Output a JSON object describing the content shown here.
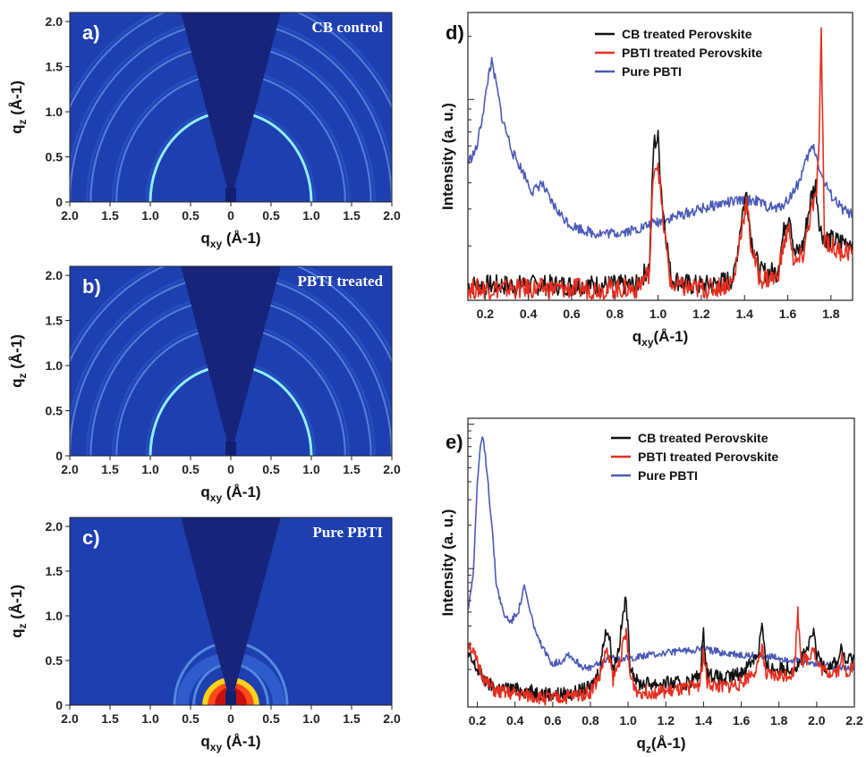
{
  "chart_data": [
    {
      "panel": "a)",
      "type": "heatmap",
      "title": "CB control",
      "xlabel": "qxy (Å-1)",
      "ylabel": "qz (Å-1)",
      "xlim": [
        2.0,
        -2.0
      ],
      "ylim": [
        0,
        2.1
      ],
      "x_ticks": [
        "2.0",
        "1.5",
        "1.0",
        "0.5",
        "0",
        "0.5",
        "1.0",
        "1.5",
        "2.0"
      ],
      "y_ticks": [
        "0",
        "0.5",
        "1.0",
        "1.5",
        "2.0"
      ],
      "rings_q": [
        1.0,
        1.42,
        1.74,
        2.0,
        2.26
      ],
      "bright_ring_q": 1.0
    },
    {
      "panel": "b)",
      "type": "heatmap",
      "title": "PBTI treated",
      "xlabel": "qxy (Å-1)",
      "ylabel": "qz (Å-1)",
      "xlim": [
        2.0,
        -2.0
      ],
      "ylim": [
        0,
        2.1
      ],
      "x_ticks": [
        "2.0",
        "1.5",
        "1.0",
        "0.5",
        "0",
        "0.5",
        "1.0",
        "1.5",
        "2.0"
      ],
      "y_ticks": [
        "0",
        "0.5",
        "1.0",
        "1.5",
        "2.0"
      ],
      "rings_q": [
        1.0,
        1.42,
        1.74,
        2.0,
        2.26
      ],
      "bright_ring_q": 1.0
    },
    {
      "panel": "c)",
      "type": "heatmap",
      "title": "Pure PBTI",
      "xlabel": "qxy (Å-1)",
      "ylabel": "qz (Å-1)",
      "xlim": [
        2.0,
        -2.0
      ],
      "ylim": [
        0,
        2.1
      ],
      "x_ticks": [
        "2.0",
        "1.5",
        "1.0",
        "0.5",
        "0",
        "0.5",
        "1.0",
        "1.5",
        "2.0"
      ],
      "y_ticks": [
        "0",
        "0.5",
        "1.0",
        "1.5",
        "2.0"
      ],
      "rings_q": [
        0.23,
        0.46,
        0.7
      ],
      "bright_ring_q": 0.23
    },
    {
      "panel": "d)",
      "type": "line",
      "xlabel": "qxy(Å-1)",
      "ylabel": "Intensity (a. u.)",
      "xlim": [
        0.12,
        1.9
      ],
      "x_ticks": [
        "0.2",
        "0.4",
        "0.6",
        "0.8",
        "1.0",
        "1.2",
        "1.4",
        "1.6",
        "1.8"
      ],
      "y_scale": "log",
      "legend_position": "top-right",
      "series": [
        {
          "name": "CB treated Perovskite",
          "color": "#111111",
          "x": [
            0.12,
            0.2,
            0.3,
            0.4,
            0.5,
            0.6,
            0.7,
            0.8,
            0.9,
            0.96,
            0.98,
            1.0,
            1.02,
            1.06,
            1.15,
            1.25,
            1.35,
            1.39,
            1.41,
            1.43,
            1.47,
            1.55,
            1.59,
            1.61,
            1.63,
            1.67,
            1.71,
            1.73,
            1.75,
            1.77,
            1.82,
            1.9
          ],
          "y": [
            1.3,
            1.3,
            1.3,
            1.3,
            1.3,
            1.3,
            1.3,
            1.3,
            1.3,
            1.6,
            6.2,
            6.5,
            3.2,
            1.4,
            1.3,
            1.3,
            1.4,
            2.9,
            3.6,
            2.2,
            1.5,
            1.5,
            2.6,
            2.9,
            1.8,
            2.0,
            3.5,
            3.9,
            2.4,
            2.2,
            2.1,
            2.1
          ]
        },
        {
          "name": "PBTI treated Perovskite",
          "color": "#e62e1f",
          "x": [
            0.12,
            0.2,
            0.3,
            0.4,
            0.5,
            0.6,
            0.7,
            0.8,
            0.9,
            0.96,
            0.98,
            1.0,
            1.02,
            1.06,
            1.15,
            1.25,
            1.35,
            1.39,
            1.41,
            1.43,
            1.47,
            1.55,
            1.59,
            1.61,
            1.63,
            1.67,
            1.71,
            1.73,
            1.745,
            1.755,
            1.77,
            1.82,
            1.9
          ],
          "y": [
            1.25,
            1.25,
            1.25,
            1.25,
            1.25,
            1.25,
            1.25,
            1.25,
            1.25,
            1.5,
            4.8,
            5.0,
            2.8,
            1.3,
            1.25,
            1.25,
            1.35,
            2.6,
            3.2,
            2.0,
            1.4,
            1.4,
            2.2,
            2.4,
            1.6,
            1.8,
            3.0,
            3.3,
            6.0,
            20.0,
            2.2,
            1.9,
            1.9
          ]
        },
        {
          "name": "Pure PBTI",
          "color": "#4a5ab8",
          "x": [
            0.12,
            0.16,
            0.2,
            0.22,
            0.23,
            0.25,
            0.28,
            0.33,
            0.38,
            0.42,
            0.46,
            0.5,
            0.55,
            0.6,
            0.7,
            0.8,
            0.9,
            1.0,
            1.1,
            1.2,
            1.3,
            1.4,
            1.45,
            1.5,
            1.55,
            1.6,
            1.65,
            1.7,
            1.72,
            1.76,
            1.8,
            1.85,
            1.9
          ],
          "y": [
            5.0,
            5.8,
            10.0,
            14.0,
            15.0,
            12.0,
            8.0,
            5.5,
            4.4,
            3.6,
            4.0,
            3.3,
            2.8,
            2.5,
            2.3,
            2.3,
            2.4,
            2.6,
            2.8,
            3.0,
            3.2,
            3.3,
            3.3,
            3.1,
            3.0,
            3.3,
            4.0,
            5.6,
            6.0,
            4.2,
            3.5,
            3.0,
            2.8
          ]
        }
      ]
    },
    {
      "panel": "e)",
      "type": "line",
      "xlabel": "qz(Å-1)",
      "ylabel": "Intensity (a. u.)",
      "xlim": [
        0.15,
        2.2
      ],
      "x_ticks": [
        "0.2",
        "0.4",
        "0.6",
        "0.8",
        "1.0",
        "1.2",
        "1.4",
        "1.6",
        "1.8",
        "2.0",
        "2.2"
      ],
      "y_scale": "log",
      "legend_position": "top-right",
      "series": [
        {
          "name": "CB treated Perovskite",
          "color": "#111111",
          "x": [
            0.15,
            0.2,
            0.25,
            0.3,
            0.4,
            0.5,
            0.6,
            0.7,
            0.8,
            0.85,
            0.88,
            0.9,
            0.92,
            0.95,
            0.98,
            0.99,
            1.01,
            1.05,
            1.2,
            1.3,
            1.38,
            1.4,
            1.42,
            1.5,
            1.6,
            1.69,
            1.71,
            1.73,
            1.8,
            1.9,
            1.96,
            1.98,
            2.0,
            2.05,
            2.12,
            2.13,
            2.15,
            2.2
          ],
          "y": [
            2.5,
            2.0,
            1.6,
            1.5,
            1.45,
            1.4,
            1.35,
            1.35,
            1.5,
            2.0,
            3.8,
            3.4,
            2.0,
            2.8,
            5.5,
            6.0,
            2.2,
            1.6,
            1.6,
            1.6,
            1.8,
            3.5,
            1.9,
            1.7,
            1.9,
            2.6,
            4.2,
            2.1,
            2.0,
            2.1,
            2.9,
            3.8,
            2.5,
            2.1,
            2.3,
            3.0,
            2.2,
            2.5
          ]
        },
        {
          "name": "PBTI treated Perovskite",
          "color": "#e62e1f",
          "x": [
            0.15,
            0.2,
            0.25,
            0.3,
            0.4,
            0.5,
            0.6,
            0.7,
            0.8,
            0.85,
            0.88,
            0.9,
            0.92,
            0.95,
            0.98,
            0.99,
            1.01,
            1.05,
            1.2,
            1.3,
            1.38,
            1.4,
            1.42,
            1.5,
            1.6,
            1.69,
            1.71,
            1.73,
            1.8,
            1.88,
            1.9,
            1.92,
            1.96,
            1.98,
            2.0,
            2.05,
            2.12,
            2.13,
            2.15,
            2.2
          ],
          "y": [
            3.2,
            2.2,
            1.6,
            1.4,
            1.35,
            1.3,
            1.25,
            1.3,
            1.4,
            1.8,
            2.6,
            2.5,
            1.7,
            2.2,
            3.2,
            3.6,
            1.8,
            1.4,
            1.4,
            1.45,
            1.6,
            2.6,
            1.6,
            1.5,
            1.6,
            2.1,
            3.0,
            1.8,
            1.8,
            1.9,
            5.0,
            2.3,
            2.4,
            3.0,
            2.2,
            1.9,
            2.0,
            2.5,
            1.9,
            2.1
          ]
        },
        {
          "name": "Pure PBTI",
          "color": "#4a5ab8",
          "x": [
            0.15,
            0.18,
            0.2,
            0.22,
            0.23,
            0.25,
            0.28,
            0.3,
            0.34,
            0.38,
            0.42,
            0.45,
            0.48,
            0.52,
            0.56,
            0.6,
            0.65,
            0.68,
            0.72,
            0.78,
            0.85,
            0.9,
            1.0,
            1.1,
            1.2,
            1.3,
            1.4,
            1.5,
            1.6,
            1.7,
            1.8,
            1.9,
            2.0,
            2.1,
            2.2
          ],
          "y": [
            5.0,
            10.0,
            40.0,
            75.0,
            80.0,
            50.0,
            18.0,
            8.0,
            4.8,
            4.3,
            5.2,
            7.5,
            5.0,
            3.3,
            2.6,
            2.2,
            2.3,
            2.6,
            2.3,
            2.0,
            2.2,
            2.4,
            2.4,
            2.5,
            2.6,
            2.7,
            2.8,
            2.6,
            2.5,
            2.5,
            2.4,
            2.3,
            2.2,
            2.1,
            2.0
          ]
        }
      ]
    }
  ],
  "labels": {
    "a": "a)",
    "b": "b)",
    "c": "c)",
    "d": "d)",
    "e": "e)",
    "title_a": "CB control",
    "title_b": "PBTI treated",
    "title_c": "Pure PBTI",
    "heat_xlabel": "qxy (Å-1)",
    "heat_ylabel": "qz (Å-1)",
    "d_xlabel": "qxy(Å-1)",
    "e_xlabel": "qz(Å-1)",
    "ylabel_int": "Intensity (a. u.)",
    "leg1": "CB treated Perovskite",
    "leg2": "PBTI treated Perovskite",
    "leg3": "Pure PBTI"
  }
}
